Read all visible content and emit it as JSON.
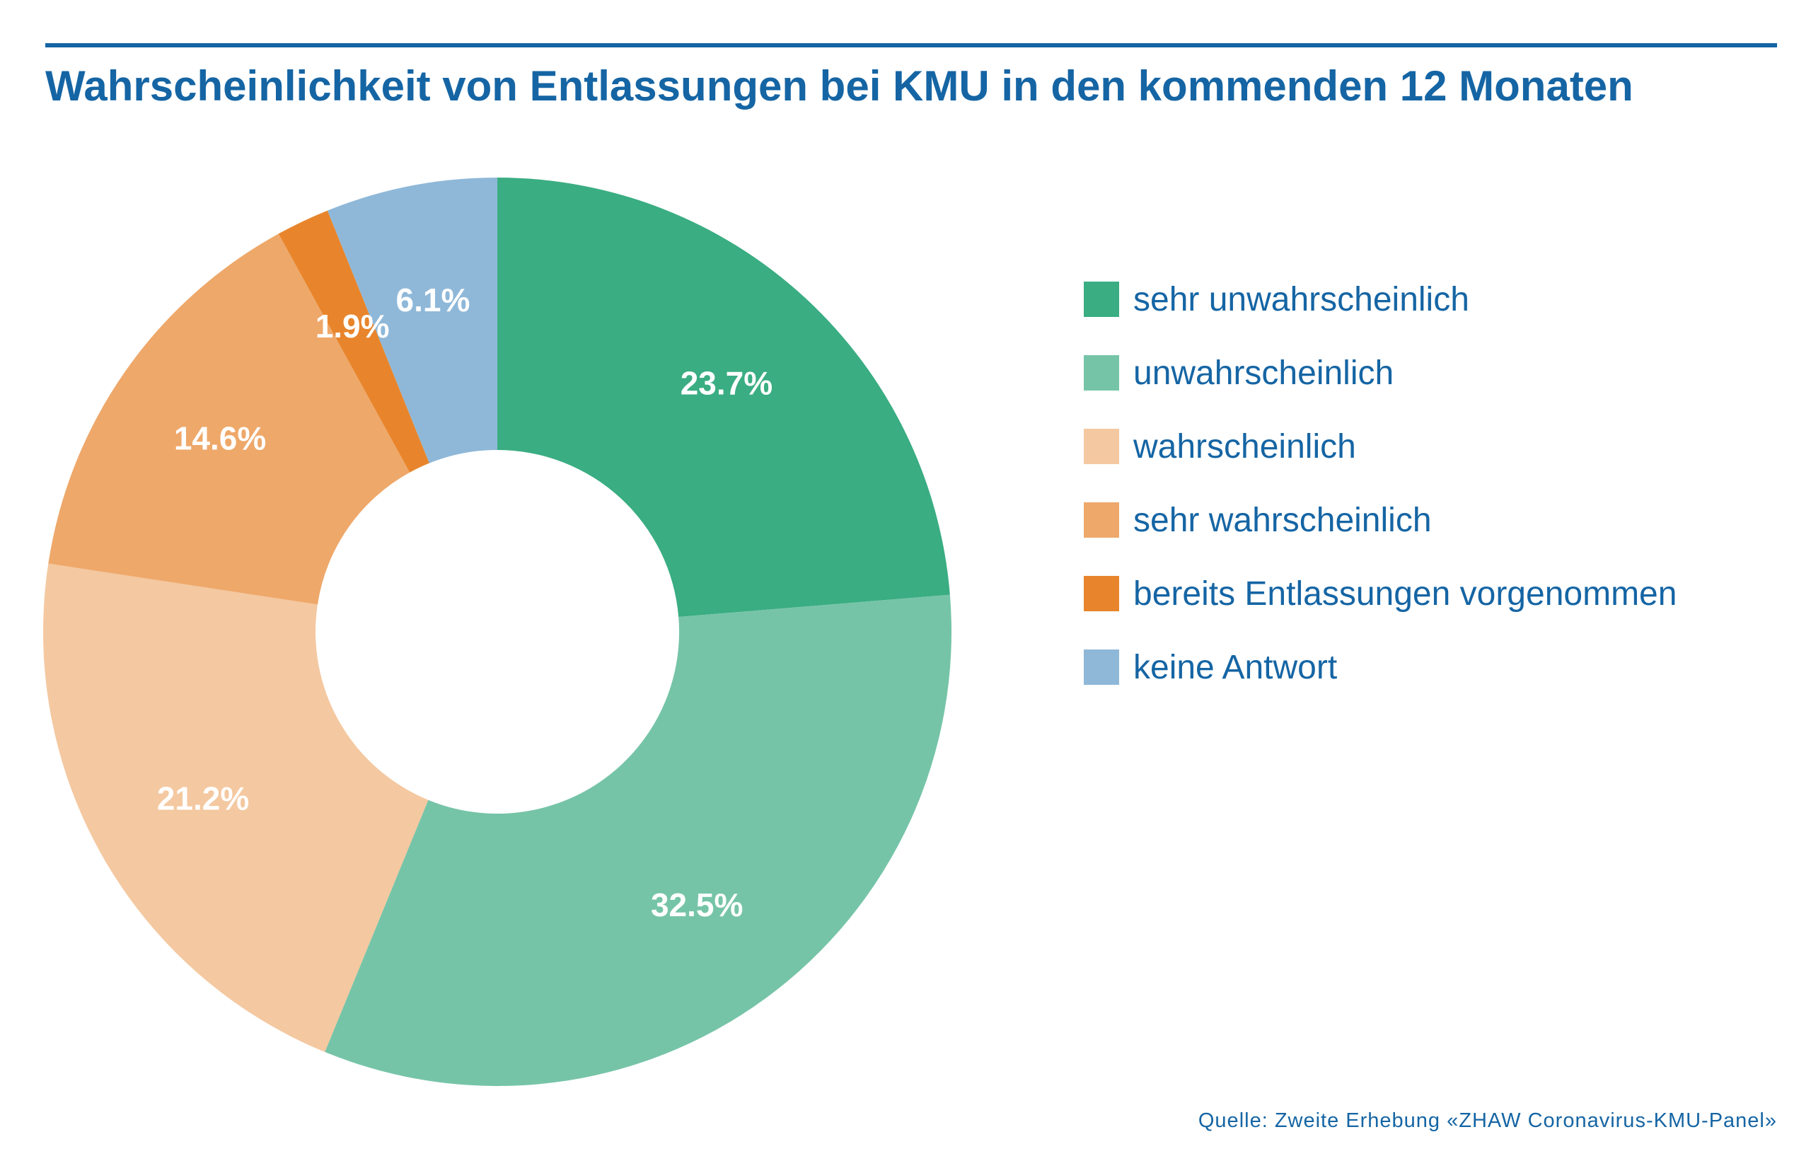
{
  "chart_data": {
    "type": "pie",
    "variant": "donut",
    "title": "Wahrscheinlichkeit von Entlassungen bei KMU in den kommenden 12 Monaten",
    "legend_position": "right",
    "categories": [
      "sehr unwahrscheinlich",
      "unwahrscheinlich",
      "wahrscheinlich",
      "sehr wahrscheinlich",
      "bereits Entlassungen vorgenommen",
      "keine Antwort"
    ],
    "values": [
      23.7,
      32.5,
      21.2,
      14.6,
      1.9,
      6.1
    ],
    "value_labels": [
      "23.7%",
      "32.5%",
      "21.2%",
      "14.6%",
      "1.9%",
      "6.1%"
    ],
    "colors": [
      "#3aad82",
      "#76c4a8",
      "#f4c8a0",
      "#eea86a",
      "#e8852c",
      "#8fb8d8"
    ],
    "start_angle_deg": 0,
    "direction": "clockwise"
  },
  "source": "Quelle: Zweite Erhebung «ZHAW Coronavirus-KMU-Panel»",
  "accent_color": "#1565a4"
}
